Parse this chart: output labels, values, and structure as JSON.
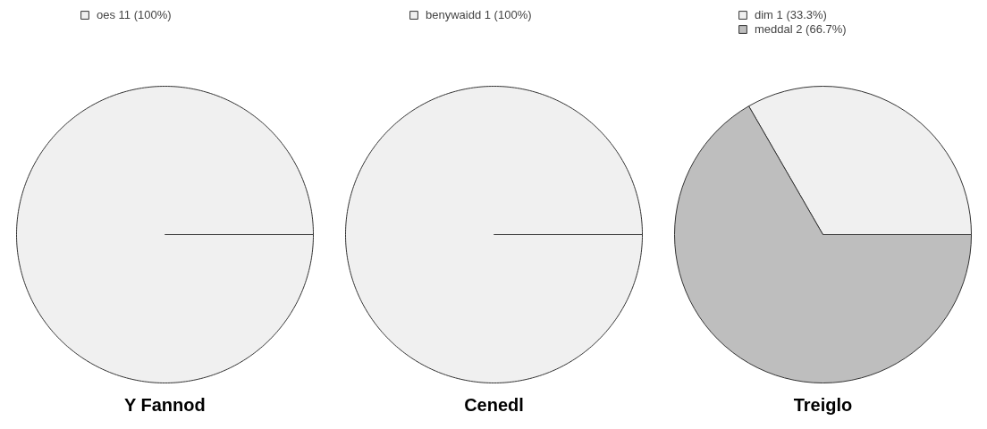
{
  "chart_data": [
    {
      "type": "pie",
      "title": "Y Fannod",
      "categories": [
        "oes"
      ],
      "values": [
        11
      ],
      "value_labels": [
        "11 (100%)"
      ],
      "colors": [
        "#f0f0f0"
      ],
      "legend": "top"
    },
    {
      "type": "pie",
      "title": "Cenedl",
      "categories": [
        "benywaidd"
      ],
      "values": [
        1
      ],
      "value_labels": [
        "1 (100%)"
      ],
      "colors": [
        "#f0f0f0"
      ],
      "legend": "top"
    },
    {
      "type": "pie",
      "title": "Treiglo",
      "categories": [
        "dim",
        "meddal"
      ],
      "values": [
        1,
        2
      ],
      "value_labels": [
        "1 (33.3%)",
        "2 (66.7%)"
      ],
      "colors": [
        "#f0f0f0",
        "#bebebe"
      ],
      "legend": "top"
    }
  ]
}
